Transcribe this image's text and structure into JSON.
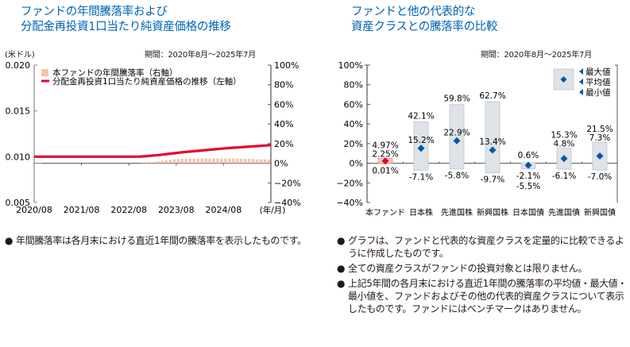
{
  "left_panel": {
    "title_line1": "ファンドの年間騰落率および",
    "title_line2": "分配金再投資1口当たり純資産価格の推移",
    "period": "期間：2020年8月～2025年7月",
    "left_unit": "(米ドル)",
    "x_unit": "(年/月)",
    "notes": [
      {
        "bullet": "●",
        "text": "年間騰落率は各月末における直近1年間の騰落率を表示したものです。"
      }
    ]
  },
  "right_panel": {
    "title_line1": "ファンドと他の代表的な",
    "title_line2": "資産クラスとの騰落率の比較",
    "period": "期間：2020年8月～2025年7月",
    "notes": [
      {
        "bullet": "●",
        "text": "グラフは、ファンドと代表的な資産クラスを定量的に比較できるように作成したものです。"
      },
      {
        "bullet": "●",
        "text": "全ての資産クラスがファンドの投資対象とは限りません。"
      },
      {
        "bullet": "●",
        "text": "上記5年間の各月末における直近1年間の騰落率の平均値・最大値・最小値を、ファンドおよびその他の代表的資産クラスについて表示したものです。ファンドにはベンチマークはありません。"
      }
    ]
  },
  "colors": {
    "title": "#0064b4",
    "nav_line": "#e60033",
    "bar_fill": "#f5c3ae",
    "fund_box": "#f9c9c0",
    "fund_marker": "#e60033",
    "range_box": "#dfe2e6",
    "range_border": "#b8c3da",
    "avg_marker": "#0057a8",
    "axis": "#888888"
  },
  "chart_data": [
    {
      "type": "bar+line",
      "title": "ファンドの年間騰落率および分配金再投資1口当たり純資産価格の推移",
      "xlabel": "(年/月)",
      "x_ticks": [
        "2020/08",
        "2021/08",
        "2022/08",
        "2023/08",
        "2024/08"
      ],
      "left_axis": {
        "label": "(米ドル)",
        "range": [
          0.005,
          0.02
        ],
        "ticks": [
          "0.005",
          "0.010",
          "0.015",
          "0.020"
        ]
      },
      "right_axis": {
        "range": [
          -40,
          100
        ],
        "ticks": [
          "−40%",
          "−20%",
          "0%",
          "20%",
          "40%",
          "60%",
          "80%",
          "100%"
        ]
      },
      "legend": {
        "placement": "top-left",
        "entries": [
          "本ファンドの年間騰落率（右軸）",
          "分配金再投資1口当たり純資産価格の推移（左軸）"
        ]
      },
      "months": [
        "2020/08",
        "2020/09",
        "2020/10",
        "2020/11",
        "2020/12",
        "2021/01",
        "2021/02",
        "2021/03",
        "2021/04",
        "2021/05",
        "2021/06",
        "2021/07",
        "2021/08",
        "2021/09",
        "2021/10",
        "2021/11",
        "2021/12",
        "2022/01",
        "2022/02",
        "2022/03",
        "2022/04",
        "2022/05",
        "2022/06",
        "2022/07",
        "2022/08",
        "2022/09",
        "2022/10",
        "2022/11",
        "2022/12",
        "2023/01",
        "2023/02",
        "2023/03",
        "2023/04",
        "2023/05",
        "2023/06",
        "2023/07",
        "2023/08",
        "2023/09",
        "2023/10",
        "2023/11",
        "2023/12",
        "2024/01",
        "2024/02",
        "2024/03",
        "2024/04",
        "2024/05",
        "2024/06",
        "2024/07",
        "2024/08",
        "2024/09",
        "2024/10",
        "2024/11",
        "2024/12",
        "2025/01",
        "2025/02",
        "2025/03",
        "2025/04",
        "2025/05",
        "2025/06",
        "2025/07"
      ],
      "series": [
        {
          "name": "本ファンドの年間騰落率",
          "axis": "right",
          "type": "bar",
          "values": [
            0.5,
            0.5,
            0,
            0,
            0,
            0,
            0,
            0,
            0,
            0,
            0,
            0,
            0,
            0,
            0,
            0,
            0,
            0,
            0,
            0,
            0,
            0,
            0,
            0,
            0,
            0,
            0,
            0.3,
            0.6,
            1.0,
            1.5,
            2.0,
            2.5,
            3.0,
            3.5,
            4.0,
            4.5,
            4.6,
            4.7,
            4.8,
            4.8,
            4.9,
            4.9,
            4.97,
            4.9,
            4.9,
            4.8,
            4.8,
            4.8,
            4.7,
            4.7,
            4.6,
            4.6,
            4.5,
            4.5,
            4.3,
            4.0,
            3.9,
            3.9,
            3.9
          ]
        },
        {
          "name": "分配金再投資1口当たり純資産価格の推移",
          "axis": "left",
          "type": "line",
          "values": [
            0.01,
            0.01,
            0.01,
            0.01,
            0.01,
            0.01,
            0.01,
            0.01,
            0.01,
            0.01,
            0.01,
            0.01,
            0.01,
            0.01,
            0.01,
            0.01,
            0.01,
            0.01,
            0.01,
            0.01,
            0.01,
            0.01,
            0.01,
            0.01,
            0.01,
            0.01,
            0.01,
            0.01003,
            0.01006,
            0.0101,
            0.01014,
            0.01018,
            0.01023,
            0.01028,
            0.01033,
            0.01038,
            0.01043,
            0.01048,
            0.01052,
            0.01056,
            0.0106,
            0.01064,
            0.01068,
            0.01072,
            0.01076,
            0.0108,
            0.01084,
            0.01088,
            0.01091,
            0.01095,
            0.01098,
            0.01101,
            0.01104,
            0.01107,
            0.0111,
            0.01113,
            0.01116,
            0.01119,
            0.01122,
            0.01126
          ]
        }
      ]
    },
    {
      "type": "range",
      "title": "ファンドと他の代表的な資産クラスとの騰落率の比較",
      "y_axis": {
        "range": [
          -40,
          100
        ],
        "ticks": [
          "−40%",
          "−20%",
          "0%",
          "20%",
          "40%",
          "60%",
          "80%",
          "100%"
        ]
      },
      "legend": {
        "placement": "top-right",
        "entries": [
          "最大値",
          "平均値",
          "最小値"
        ]
      },
      "categories": [
        "本ファンド",
        "日本株",
        "先進国株",
        "新興国株",
        "日本国債",
        "先進国債",
        "新興国債"
      ],
      "max": [
        4.97,
        42.1,
        59.8,
        62.7,
        0.6,
        15.3,
        21.5
      ],
      "avg": [
        2.25,
        15.2,
        22.9,
        13.4,
        -2.1,
        4.8,
        7.3
      ],
      "min": [
        0.01,
        -7.1,
        -5.8,
        -9.7,
        -5.5,
        -6.1,
        -7.0
      ],
      "max_labels": [
        "4.97%",
        "42.1%",
        "59.8%",
        "62.7%",
        "0.6%",
        "15.3%",
        "21.5%"
      ],
      "avg_labels": [
        "2.25%",
        "15.2%",
        "22.9%",
        "13.4%",
        "-2.1%",
        "4.8%",
        "7.3%"
      ],
      "min_labels": [
        "0.01%",
        "-7.1%",
        "-5.8%",
        "-9.7%",
        "-5.5%",
        "-6.1%",
        "-7.0%"
      ]
    }
  ]
}
